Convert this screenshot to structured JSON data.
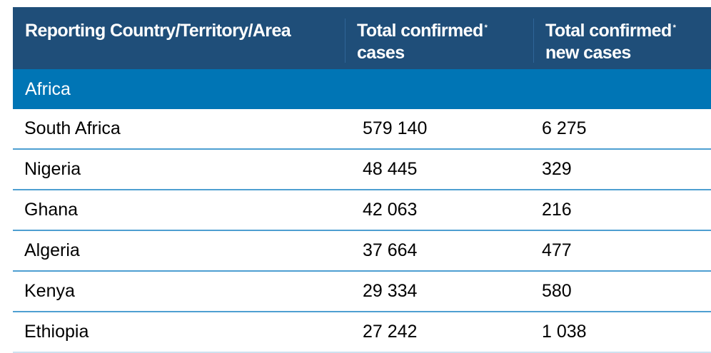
{
  "table": {
    "headers": {
      "country": "Reporting Country/Territory/Area",
      "total_confirmed_line1": "Total confirmed",
      "total_confirmed_line2": "cases",
      "new_confirmed_line1": "Total confirmed",
      "new_confirmed_line2": "new cases",
      "footnote_mark": "*"
    },
    "region": "Africa",
    "rows": [
      {
        "country": "South Africa",
        "total": "579 140",
        "new": "6 275"
      },
      {
        "country": "Nigeria",
        "total": "48 445",
        "new": " 329"
      },
      {
        "country": "Ghana",
        "total": "42 063",
        "new": " 216"
      },
      {
        "country": "Algeria",
        "total": "37 664",
        "new": " 477"
      },
      {
        "country": "Kenya",
        "total": "29 334",
        "new": " 580"
      },
      {
        "country": "Ethiopia",
        "total": "27 242",
        "new": "1 038"
      }
    ]
  }
}
